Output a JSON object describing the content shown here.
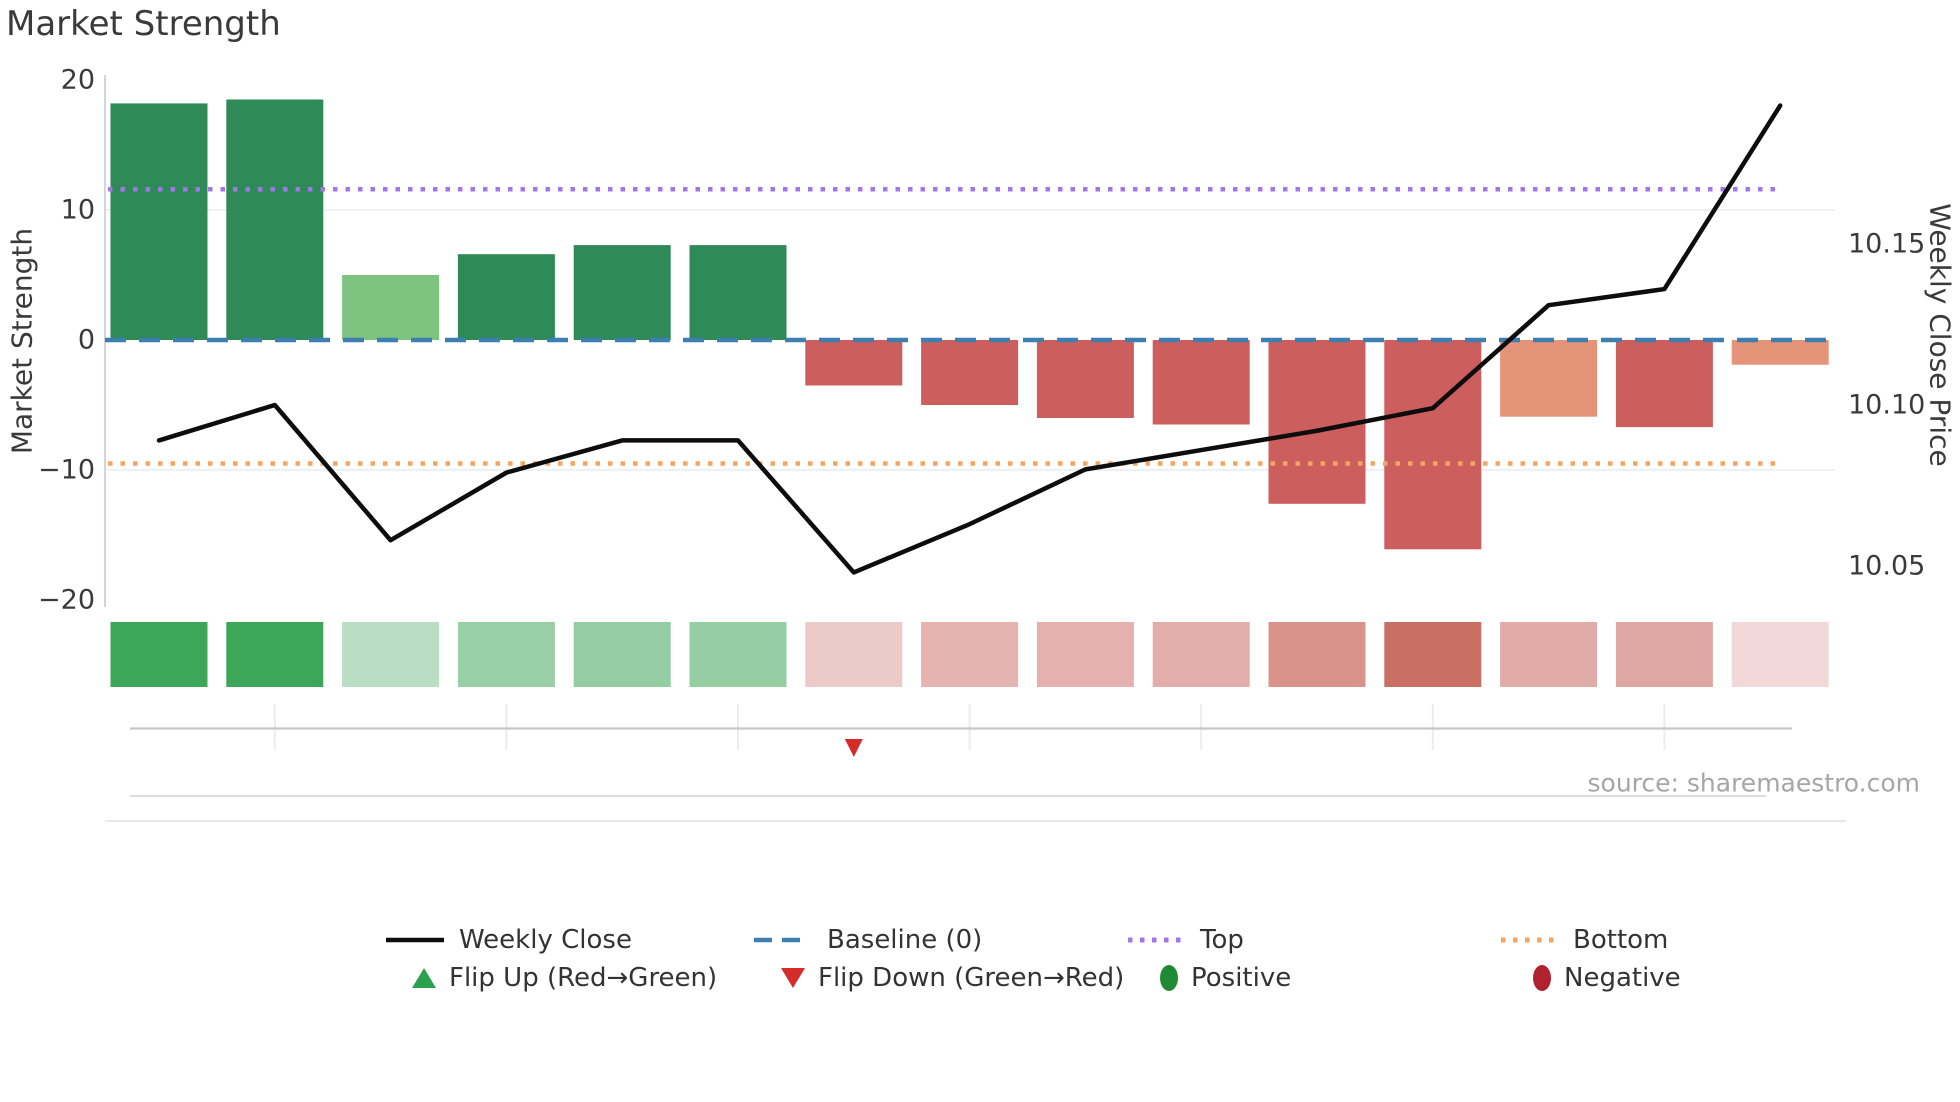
{
  "page": {
    "title": "Market Strength"
  },
  "chart_data": {
    "type": "combo-bar-line-heatstrip",
    "title": "Market Strength",
    "source": "source: sharemaestro.com",
    "x_positions": [
      1,
      2,
      3,
      4,
      5,
      6,
      7,
      8,
      9,
      10,
      11,
      12,
      13,
      14,
      15
    ],
    "bars": {
      "name": "Market Strength",
      "axis": "left",
      "values": [
        18.2,
        18.5,
        5.0,
        6.6,
        7.3,
        7.3,
        -3.5,
        -5.0,
        -6.0,
        -6.5,
        -12.6,
        -16.1,
        -5.9,
        -6.7,
        -1.9
      ],
      "colors": [
        "#2e8b57",
        "#2e8b57",
        "#7ec37f",
        "#2e8b57",
        "#2e8b57",
        "#2e8b57",
        "#cc5e5d",
        "#cc5e5d",
        "#cc5e5d",
        "#cc5e5d",
        "#cc5e5d",
        "#cc5e5d",
        "#e5947a",
        "#cc5e5d",
        "#e5947a"
      ]
    },
    "line": {
      "name": "Weekly Close",
      "axis": "right",
      "values": [
        10.089,
        10.1,
        10.058,
        10.079,
        10.089,
        10.089,
        10.048,
        10.063,
        10.08,
        10.086,
        10.092,
        10.099,
        10.131,
        10.136,
        10.193
      ],
      "color": "#0d0d0d"
    },
    "reference_lines": {
      "baseline": {
        "label": "Baseline (0)",
        "axis": "left",
        "value": 0,
        "style": "dashed",
        "color": "#3d7fb0"
      },
      "top": {
        "label": "Top",
        "axis": "left",
        "value": 11.6,
        "style": "dotted",
        "color": "#a177e8"
      },
      "bottom": {
        "label": "Bottom",
        "axis": "left",
        "value": -9.5,
        "style": "dotted",
        "color": "#f2a662"
      }
    },
    "heat_strip": [
      "#3ca758",
      "#3ca758",
      "#b9dec3",
      "#98cfa6",
      "#94cda3",
      "#96cea4",
      "#eccac8",
      "#e5b4b1",
      "#e4b1ae",
      "#e2aeab",
      "#d9938b",
      "#ca6f63",
      "#e1aba7",
      "#dfa7a3",
      "#f2d8d9"
    ],
    "flip_markers": [
      {
        "type": "flip_down",
        "position": 7,
        "color": "#d62b2b"
      }
    ],
    "left_axis": {
      "label": "Market Strength",
      "ticks": [
        "20",
        "10",
        "0",
        "−10",
        "−20"
      ],
      "tick_values": [
        20,
        10,
        0,
        -10,
        -20
      ],
      "lim": [
        -20.4,
        20.4
      ]
    },
    "right_axis": {
      "label": "Weekly Close Price",
      "ticks": [
        "10.15",
        "10.10",
        "10.05"
      ],
      "tick_values": [
        10.15,
        10.1,
        10.05
      ],
      "lim": [
        10.037,
        10.203
      ]
    },
    "grid_values": [
      10,
      -10
    ],
    "x_tick_positions": [
      2,
      4,
      6,
      8,
      10,
      12,
      14
    ],
    "legend_position": "bottom-center"
  },
  "legend": {
    "weekly_close": "Weekly Close",
    "baseline": "Baseline (0)",
    "top": "Top",
    "bottom": "Bottom",
    "flip_up": "Flip Up (Red→Green)",
    "flip_down": "Flip Down (Green→Red)",
    "positive": "Positive",
    "negative": "Negative"
  },
  "colors": {
    "line": "#0d0d0d",
    "baseline": "#3d7fb0",
    "top": "#a177e8",
    "bottom": "#f2a662",
    "flip_up": "#2aa14e",
    "flip_down": "#d62b2b",
    "positive": "#1e8b34",
    "negative": "#b0222e",
    "title_text": "#3a3a3a",
    "tick_text": "#3a3a3a",
    "source_text": "#a6a6a6",
    "grid": "#eef0f6",
    "spine": "#d4d4dc",
    "axis_line": "#c6c6c6",
    "x_tick": "#ececec"
  }
}
